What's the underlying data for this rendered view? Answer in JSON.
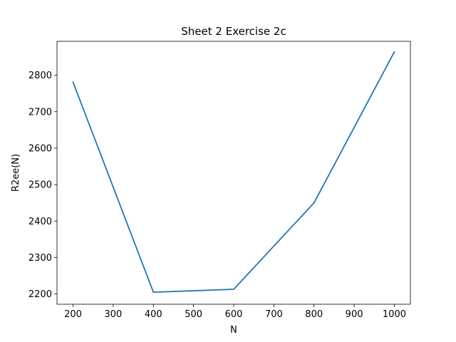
{
  "chart_data": {
    "type": "line",
    "title": "Sheet 2 Exercise 2c",
    "xlabel": "N",
    "ylabel": "R2ee(N)",
    "x": [
      200,
      400,
      600,
      800,
      1000
    ],
    "series": [
      {
        "values": [
          2781,
          2205,
          2213,
          2450,
          2864
        ],
        "color": "#1f77b4"
      }
    ],
    "xlim": [
      160,
      1040
    ],
    "ylim": [
      2172,
      2893
    ],
    "xticks": [
      200,
      300,
      400,
      500,
      600,
      700,
      800,
      900,
      1000
    ],
    "yticks": [
      2200,
      2300,
      2400,
      2500,
      2600,
      2700,
      2800
    ],
    "grid": false,
    "legend": "none"
  }
}
